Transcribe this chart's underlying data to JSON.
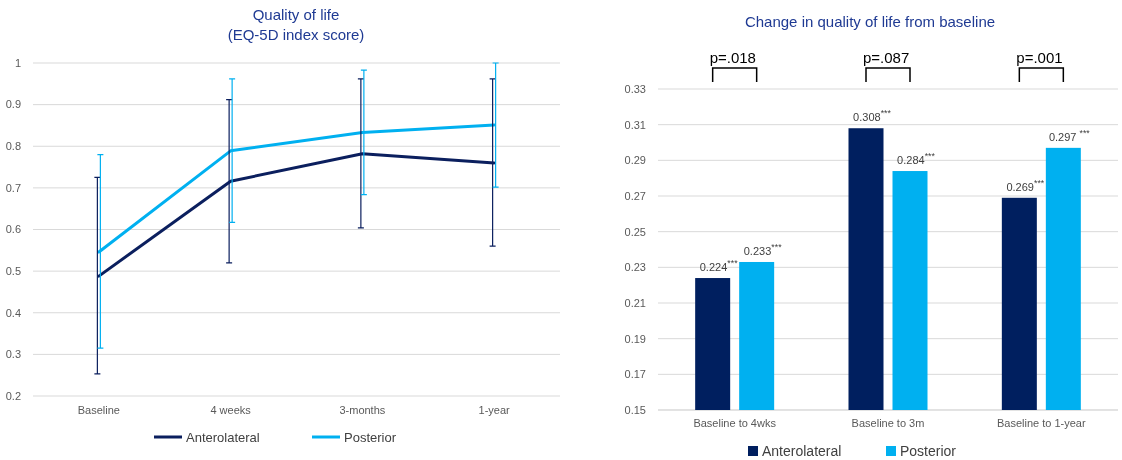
{
  "chart_data": [
    {
      "type": "line",
      "title": "Quality of life\n(EQ-5D index score)",
      "categories": [
        "Baseline",
        "4 weeks",
        "3-months",
        "1-year"
      ],
      "series": [
        {
          "name": "Anterolateral",
          "color": "#0b1f5e",
          "values": [
            0.488,
            0.716,
            0.782,
            0.76
          ],
          "errors": [
            [
              0.253,
              0.725
            ],
            [
              0.52,
              0.912
            ],
            [
              0.604,
              0.962
            ],
            [
              0.56,
              0.962
            ]
          ]
        },
        {
          "name": "Posterior",
          "color": "#00b0f0",
          "values": [
            0.546,
            0.789,
            0.833,
            0.851
          ],
          "errors": [
            [
              0.315,
              0.78
            ],
            [
              0.617,
              0.962
            ],
            [
              0.684,
              0.983
            ],
            [
              0.702,
              1.0
            ]
          ]
        }
      ],
      "ylim": [
        0.2,
        1
      ],
      "yticks": [
        0.2,
        0.3,
        0.4,
        0.5,
        0.6,
        0.7,
        0.8,
        0.9,
        1
      ],
      "grid": "y",
      "legend": "bottom",
      "marker": "none",
      "line_style": "solid"
    },
    {
      "type": "bar",
      "title": "Change in quality of life from baseline",
      "categories": [
        "Baseline to 4wks",
        "Baseline to 3m",
        "Baseline to 1-year"
      ],
      "series": [
        {
          "name": "Anterolateral",
          "color": "#001f5f",
          "values": [
            0.224,
            0.308,
            0.269
          ],
          "value_labels": [
            "0.224$^{***}$",
            "0.308$^{***}$",
            "0.269$^{***}$"
          ]
        },
        {
          "name": "Posterior",
          "color": "#00b0f0",
          "values": [
            0.233,
            0.284,
            0.297
          ],
          "value_labels": [
            "0.233$^{***}$",
            "0.284$^{***}$",
            "0.297 $^{***}$"
          ]
        }
      ],
      "ylim": [
        0.15,
        0.33
      ],
      "yticks": [
        0.15,
        0.17,
        0.19,
        0.21,
        0.23,
        0.25,
        0.27,
        0.29,
        0.31,
        0.33
      ],
      "grid": "y",
      "legend": "bottom",
      "annotations": [
        "p=.018",
        "p=.087",
        "p=.001"
      ]
    }
  ]
}
